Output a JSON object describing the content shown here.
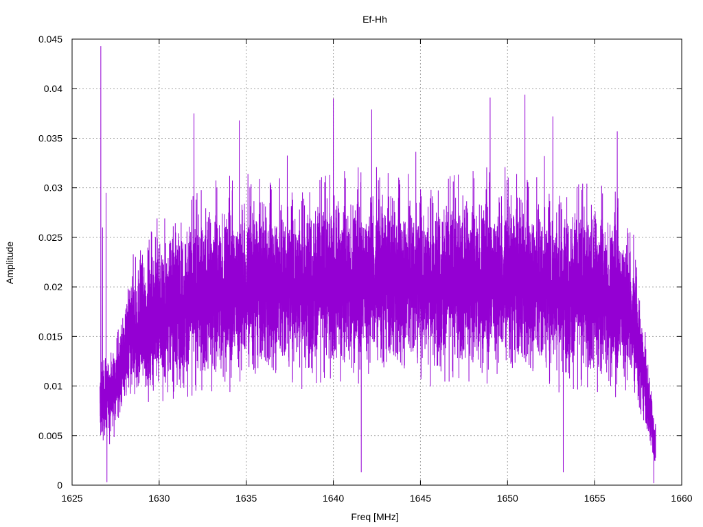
{
  "chart_data": {
    "type": "line",
    "title": "Ef-Hh",
    "xlabel": "Freq [MHz]",
    "ylabel": "Amplitude",
    "xlim": [
      1625,
      1660
    ],
    "ylim": [
      0,
      0.045
    ],
    "x_ticks": [
      1625,
      1630,
      1635,
      1640,
      1645,
      1650,
      1655,
      1660
    ],
    "x_tick_labels": [
      "1625",
      "1630",
      "1635",
      "1640",
      "1645",
      "1650",
      "1655",
      "1660"
    ],
    "y_ticks": [
      0,
      0.005,
      0.01,
      0.015,
      0.02,
      0.025,
      0.03,
      0.035,
      0.04,
      0.045
    ],
    "y_tick_labels": [
      "0",
      "0.005",
      "0.01",
      "0.015",
      "0.02",
      "0.025",
      "0.03",
      "0.035",
      "0.04",
      "0.045"
    ],
    "grid": true,
    "line_color": "#9400d3",
    "signal": {
      "x_start": 1626.6,
      "x_end": 1658.5,
      "envelope": [
        {
          "x": 1626.6,
          "mid": 0.008,
          "spread": 0.006
        },
        {
          "x": 1627.0,
          "mid": 0.009,
          "spread": 0.005
        },
        {
          "x": 1627.8,
          "mid": 0.011,
          "spread": 0.006
        },
        {
          "x": 1628.3,
          "mid": 0.015,
          "spread": 0.009
        },
        {
          "x": 1630.0,
          "mid": 0.0175,
          "spread": 0.011
        },
        {
          "x": 1633.0,
          "mid": 0.0195,
          "spread": 0.012
        },
        {
          "x": 1640.0,
          "mid": 0.0205,
          "spread": 0.012
        },
        {
          "x": 1650.0,
          "mid": 0.0205,
          "spread": 0.012
        },
        {
          "x": 1655.0,
          "mid": 0.0195,
          "spread": 0.012
        },
        {
          "x": 1657.0,
          "mid": 0.018,
          "spread": 0.011
        },
        {
          "x": 1657.7,
          "mid": 0.012,
          "spread": 0.007
        },
        {
          "x": 1658.5,
          "mid": 0.004,
          "spread": 0.003
        }
      ],
      "peaks": [
        {
          "x": 1626.65,
          "y": 0.0443
        },
        {
          "x": 1626.75,
          "y": 0.026
        },
        {
          "x": 1626.95,
          "y": 0.0295
        },
        {
          "x": 1632.0,
          "y": 0.0375
        },
        {
          "x": 1634.6,
          "y": 0.0368
        },
        {
          "x": 1640.0,
          "y": 0.039
        },
        {
          "x": 1642.2,
          "y": 0.0379
        },
        {
          "x": 1649.0,
          "y": 0.0391
        },
        {
          "x": 1651.0,
          "y": 0.0394
        },
        {
          "x": 1652.6,
          "y": 0.0372
        },
        {
          "x": 1656.3,
          "y": 0.0357
        }
      ],
      "troughs": [
        {
          "x": 1627.0,
          "y": 0.0003
        },
        {
          "x": 1641.6,
          "y": 0.0013
        },
        {
          "x": 1653.2,
          "y": 0.0013
        },
        {
          "x": 1658.4,
          "y": 0.0002
        }
      ]
    }
  }
}
